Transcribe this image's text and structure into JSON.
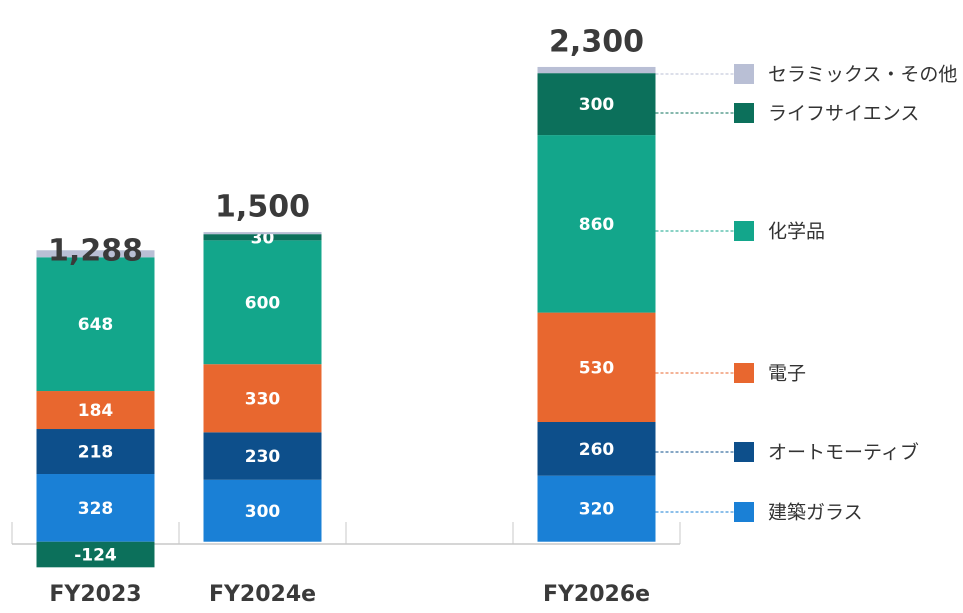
{
  "chart_data": {
    "type": "stacked_bar",
    "categories": [
      "FY2023",
      "FY2024e",
      null,
      "FY2026e"
    ],
    "ylim": [
      -200,
      2450
    ],
    "series": [
      {
        "name": "建築ガラス",
        "color": "#1a80d6",
        "values": [
          328,
          300,
          null,
          320
        ]
      },
      {
        "name": "オートモーティブ",
        "color": "#0d4f8b",
        "values": [
          218,
          230,
          null,
          260
        ]
      },
      {
        "name": "電子",
        "color": "#e8672f",
        "values": [
          184,
          330,
          null,
          530
        ]
      },
      {
        "name": "化学品",
        "color": "#13a68b",
        "values": [
          648,
          600,
          null,
          860
        ]
      },
      {
        "name": "ライフサイエンス",
        "color": "#0c705b",
        "values": [
          -124,
          30,
          null,
          300
        ]
      },
      {
        "name": "セラミックス・その他",
        "color": "#b9bfd5",
        "values": [
          34,
          10,
          null,
          30
        ],
        "data_labels": false
      }
    ],
    "totals": [
      1288,
      1500,
      null,
      2300
    ],
    "total_labels": [
      "1,288",
      "1,500",
      null,
      "2,300"
    ]
  }
}
